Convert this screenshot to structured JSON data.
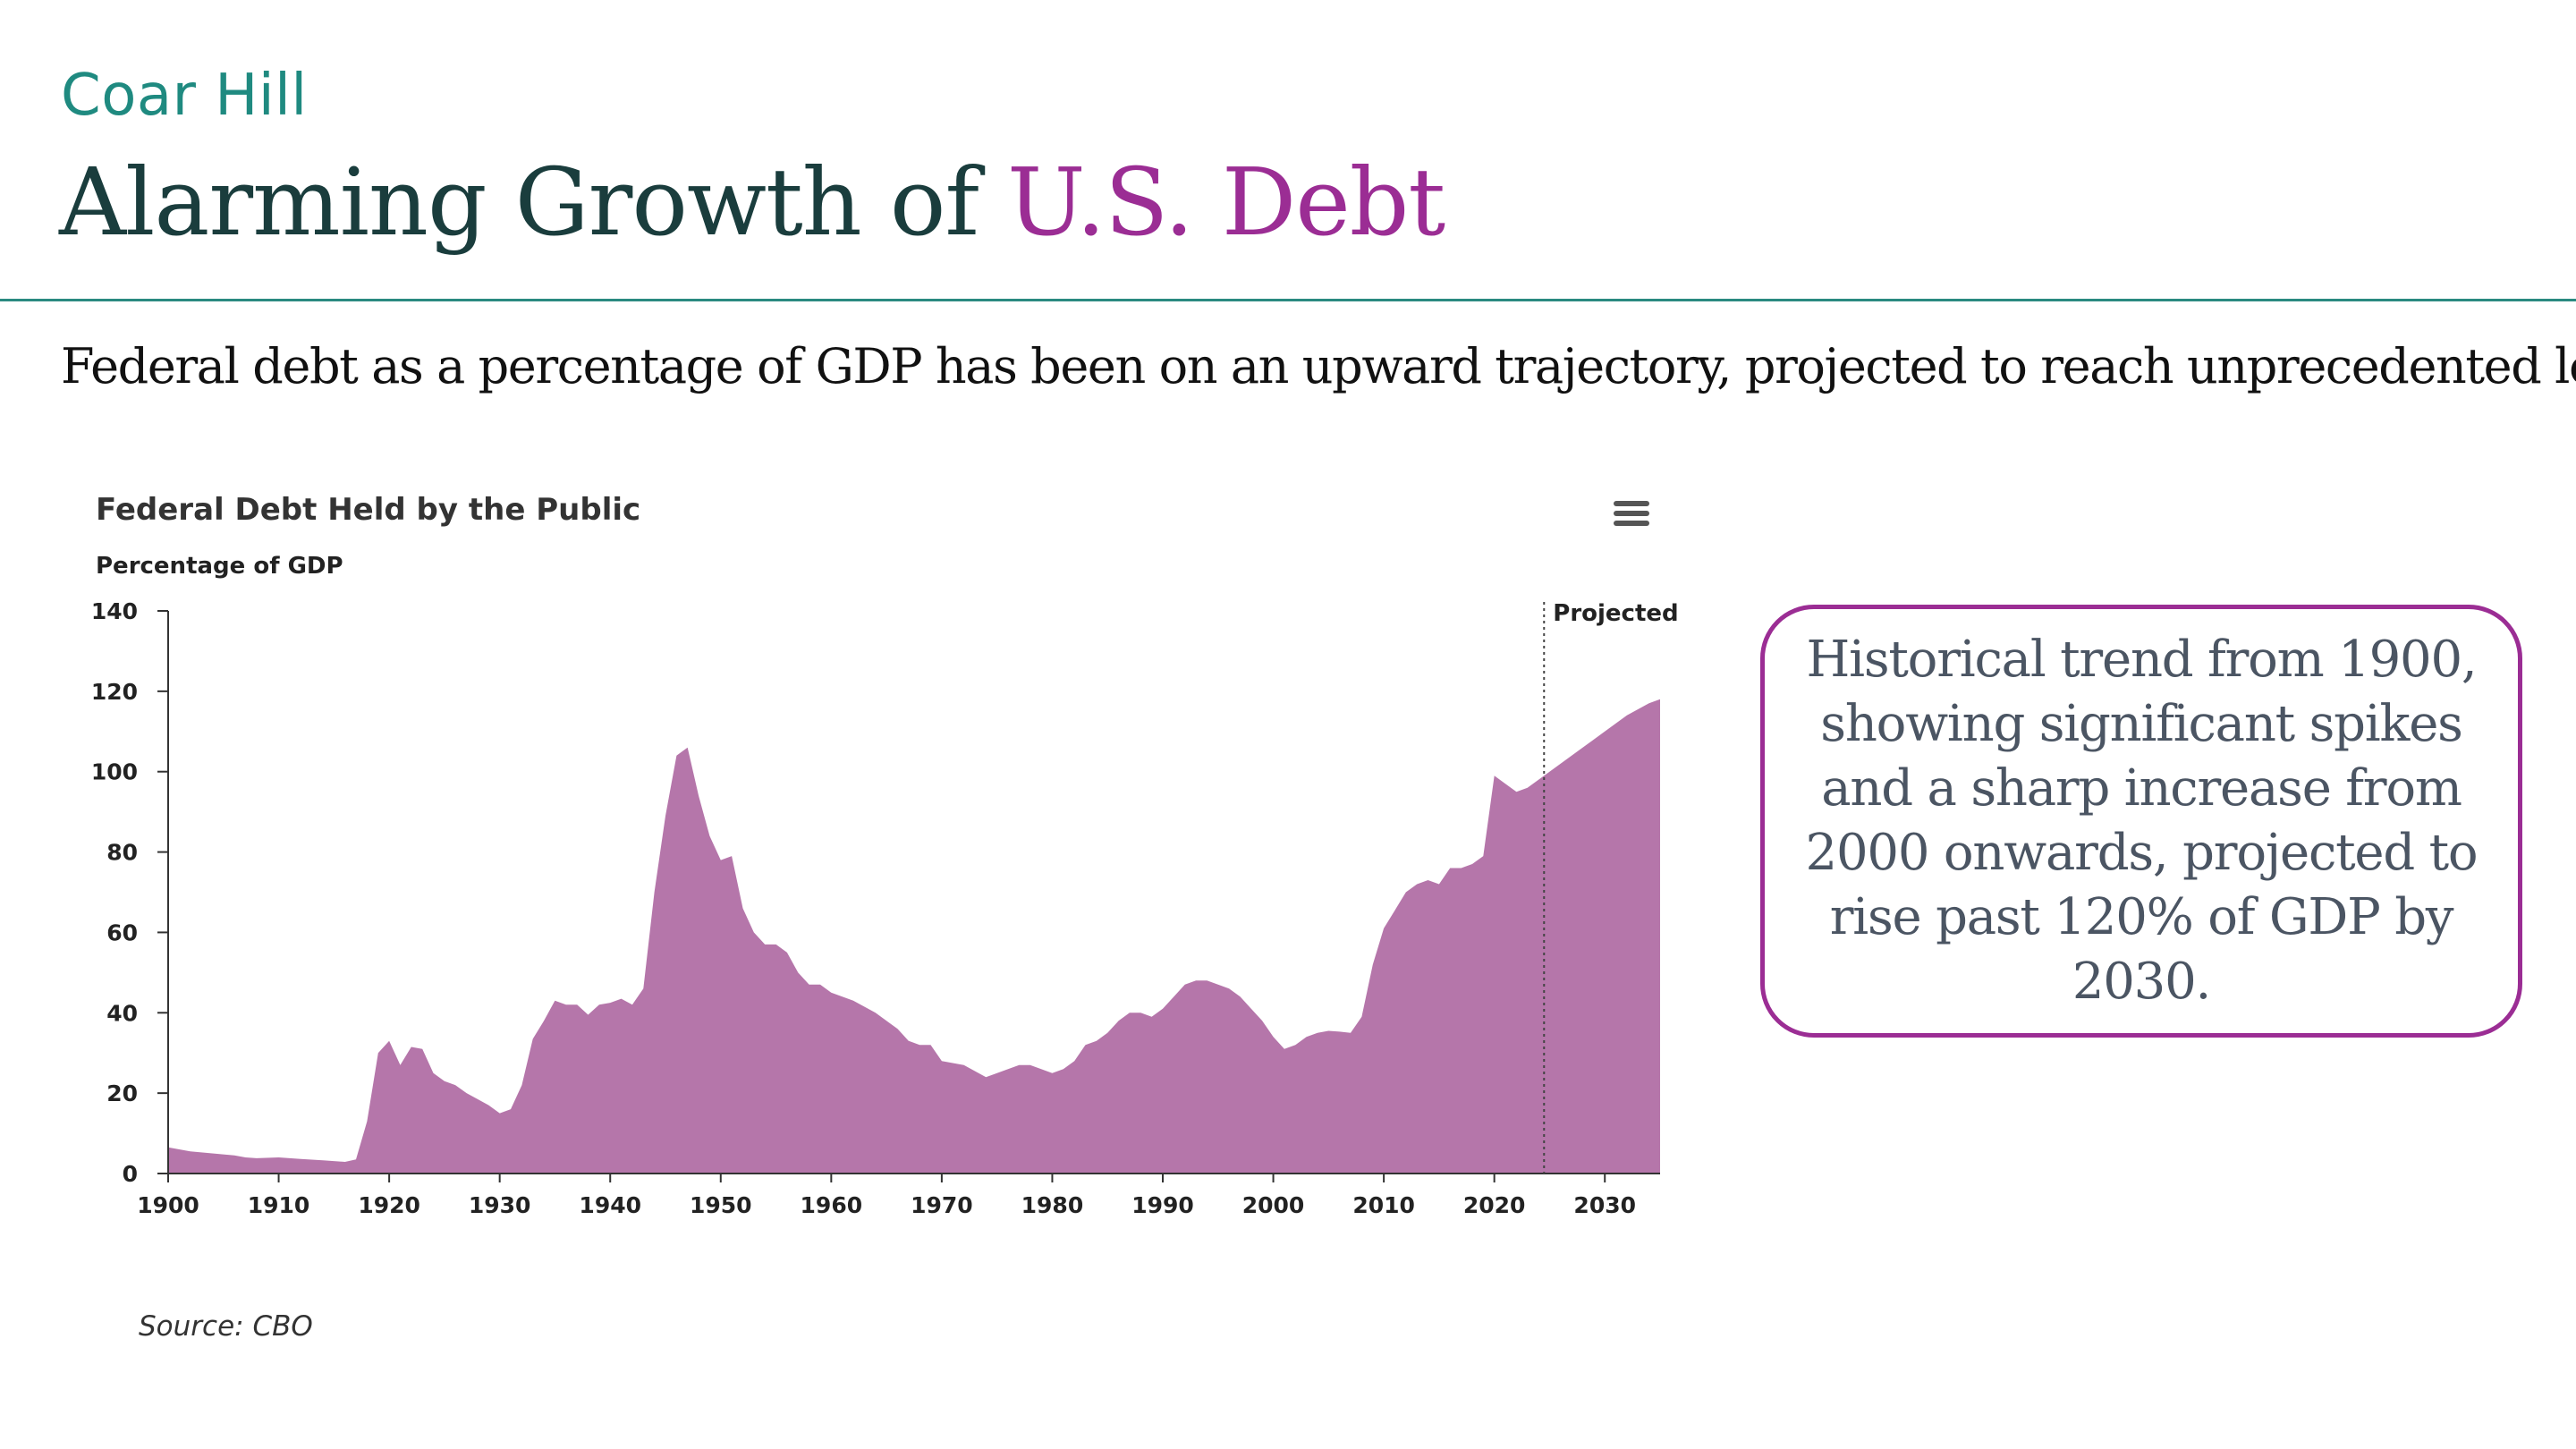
{
  "header": {
    "brand": "Coar Hill",
    "title_main": "Alarming Growth of ",
    "title_accent": "U.S. Debt",
    "subtitle": "Federal debt as a percentage of GDP has been on an upward trajectory, projected to reach unprecedented levels."
  },
  "callout": {
    "text": "Historical trend from 1900, showing significant spikes and a sharp increase from 2000 onwards, projected to rise past 120% of GDP by 2030."
  },
  "source": "Source: CBO",
  "colors": {
    "brand": "#1f8a80",
    "accent": "#9b2d94",
    "area_fill": "#b576aa",
    "rule": "#2a8a80"
  },
  "icons": {
    "chart_menu": "hamburger-menu-icon"
  },
  "chart_data": {
    "type": "area",
    "title": "Federal Debt Held by the Public",
    "ylabel": "Percentage of GDP",
    "xlabel": "",
    "xlim": [
      1900,
      2035
    ],
    "ylim": [
      0,
      140
    ],
    "x_ticks": [
      "1900",
      "1910",
      "1920",
      "1930",
      "1940",
      "1950",
      "1960",
      "1970",
      "1980",
      "1990",
      "2000",
      "2010",
      "2020",
      "2030"
    ],
    "y_ticks": [
      "0",
      "20",
      "40",
      "60",
      "80",
      "100",
      "120",
      "140"
    ],
    "projection_marker": {
      "x": 2024.5,
      "label": "Projected"
    },
    "grid": false,
    "legend": "none",
    "series": [
      {
        "x": [
          1900,
          1902,
          1904,
          1906,
          1907,
          1908,
          1910,
          1912,
          1914,
          1915,
          1916,
          1917,
          1918,
          1919,
          1920,
          1921,
          1922,
          1923,
          1924,
          1925,
          1926,
          1927,
          1928,
          1929,
          1930,
          1931,
          1932,
          1933,
          1934,
          1935,
          1936,
          1937,
          1938,
          1939,
          1940,
          1941,
          1942,
          1943,
          1944,
          1945,
          1946,
          1947,
          1948,
          1949,
          1950,
          1951,
          1952,
          1953,
          1954,
          1955,
          1956,
          1957,
          1958,
          1959,
          1960,
          1962,
          1964,
          1966,
          1967,
          1968,
          1969,
          1970,
          1972,
          1974,
          1975,
          1976,
          1977,
          1978,
          1979,
          1980,
          1981,
          1982,
          1983,
          1984,
          1985,
          1986,
          1987,
          1988,
          1989,
          1990,
          1991,
          1992,
          1993,
          1994,
          1995,
          1996,
          1997,
          1998,
          1999,
          2000,
          2001,
          2002,
          2003,
          2004,
          2005,
          2006,
          2007,
          2008,
          2009,
          2010,
          2011,
          2012,
          2013,
          2014,
          2015,
          2016,
          2017,
          2018,
          2019,
          2020,
          2021,
          2022,
          2023,
          2024,
          2026,
          2028,
          2030,
          2032,
          2034,
          2035
        ],
        "y": [
          6.5,
          5.5,
          5,
          4.5,
          4,
          3.8,
          4,
          3.6,
          3.3,
          3.1,
          2.9,
          3.5,
          13,
          30,
          33,
          27,
          31.5,
          31,
          25,
          23,
          22,
          20,
          18.5,
          17,
          15,
          16,
          22,
          33.5,
          38,
          43,
          42,
          42,
          39.5,
          42,
          42.5,
          43.5,
          42,
          46,
          70,
          89,
          104,
          106,
          94,
          84,
          78,
          79,
          66,
          60,
          57,
          57,
          55,
          50,
          47,
          47,
          45,
          43,
          40,
          36,
          33,
          32,
          32,
          28,
          27,
          24,
          25,
          26,
          27,
          27,
          26,
          25,
          26,
          28,
          32,
          33,
          35,
          38,
          40,
          40,
          39,
          41,
          44,
          47,
          48,
          48,
          47,
          46,
          44,
          41,
          38,
          34,
          31,
          32,
          34,
          35,
          35.5,
          35.3,
          35,
          39,
          52,
          61,
          65.5,
          70,
          72,
          73,
          72,
          76,
          76,
          77,
          79,
          99,
          97,
          95,
          96,
          98,
          102,
          106,
          110,
          114,
          117,
          118
        ]
      }
    ]
  }
}
